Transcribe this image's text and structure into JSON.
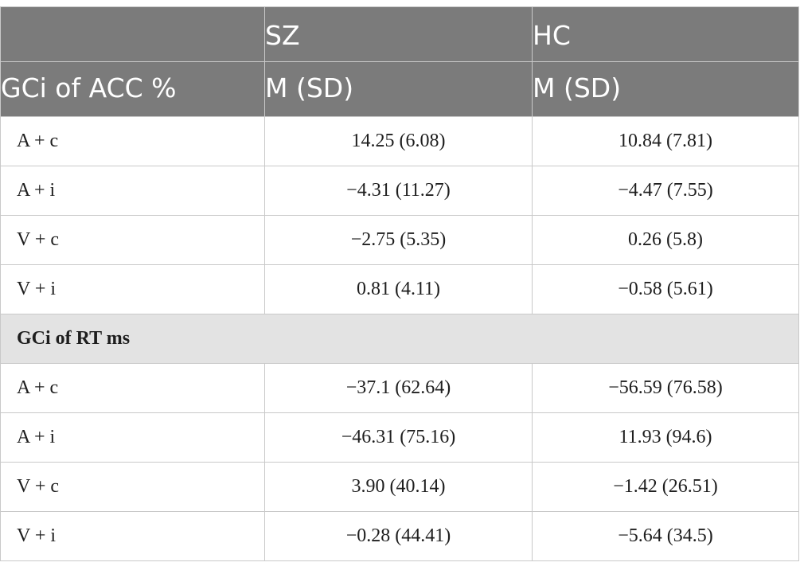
{
  "table": {
    "header": {
      "top": [
        "",
        "SZ",
        "HC"
      ],
      "bottom": [
        "GCi of ACC %",
        "M (SD)",
        "M (SD)"
      ]
    },
    "acc_rows": [
      {
        "label": "A + c",
        "sz": "14.25 (6.08)",
        "hc": "10.84 (7.81)"
      },
      {
        "label": "A + i",
        "sz": "−4.31 (11.27)",
        "hc": "−4.47 (7.55)"
      },
      {
        "label": "V + c",
        "sz": "−2.75 (5.35)",
        "hc": "0.26 (5.8)"
      },
      {
        "label": "V + i",
        "sz": "0.81 (4.11)",
        "hc": "−0.58 (5.61)"
      }
    ],
    "section_label": "GCi of RT ms",
    "rt_rows": [
      {
        "label": "A + c",
        "sz": "−37.1 (62.64)",
        "hc": "−56.59 (76.58)"
      },
      {
        "label": "A + i",
        "sz": "−46.31 (75.16)",
        "hc": "11.93 (94.6)"
      },
      {
        "label": "V + c",
        "sz": "3.90 (40.14)",
        "hc": "−1.42 (26.51)"
      },
      {
        "label": "V + i",
        "sz": "−0.28 (44.41)",
        "hc": "−5.64 (34.5)"
      }
    ]
  }
}
